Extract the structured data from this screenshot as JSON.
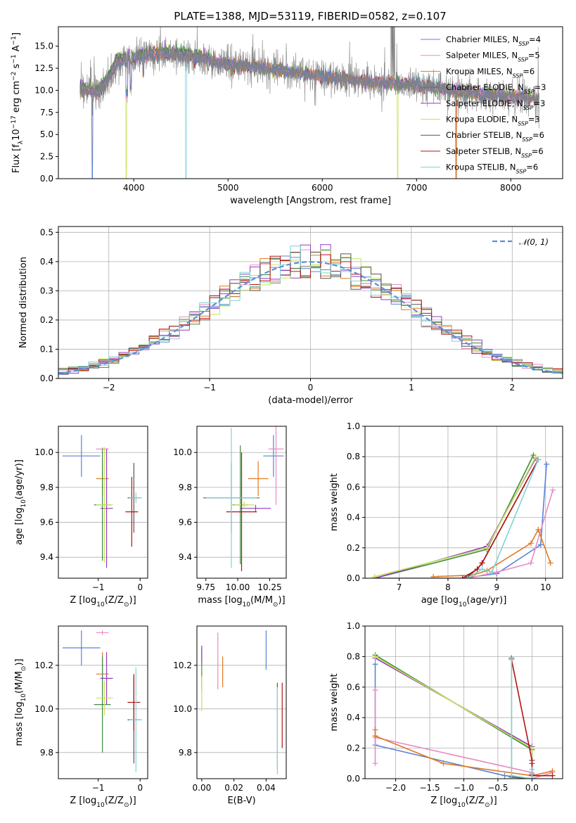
{
  "title": "PLATE=1388, MJD=53119, FIBERID=0582, z=0.107",
  "colors": {
    "Chabrier MILES": "#5b83d6",
    "Salpeter MILES": "#e98bc6",
    "Kroupa MILES": "#e07a20",
    "Chabrier ELODIE": "#3f8c3f",
    "Salpeter ELODIE": "#9a39c4",
    "Kroupa ELODIE": "#c5e35a",
    "Chabrier STELIB": "#555555",
    "Salpeter STELIB": "#b31414",
    "Kroupa STELIB": "#7fd3d8"
  },
  "legend": [
    {
      "key": "Chabrier MILES",
      "prefix": "Chabrier MILES, N",
      "sub": "SSP",
      "suffix": "=4"
    },
    {
      "key": "Salpeter MILES",
      "prefix": "Salpeter MILES, N",
      "sub": "SSP",
      "suffix": "=5"
    },
    {
      "key": "Kroupa MILES",
      "prefix": "Kroupa MILES, N",
      "sub": "SSP",
      "suffix": "=6"
    },
    {
      "key": "Chabrier ELODIE",
      "prefix": "Chabrier ELODIE, N",
      "sub": "SSP",
      "suffix": "=3"
    },
    {
      "key": "Salpeter ELODIE",
      "prefix": "Salpeter ELODIE, N",
      "sub": "SSP",
      "suffix": "=3"
    },
    {
      "key": "Kroupa ELODIE",
      "prefix": "Kroupa ELODIE, N",
      "sub": "SSP",
      "suffix": "=3"
    },
    {
      "key": "Chabrier STELIB",
      "prefix": "Chabrier STELIB, N",
      "sub": "SSP",
      "suffix": "=6"
    },
    {
      "key": "Salpeter STELIB",
      "prefix": "Salpeter STELIB, N",
      "sub": "SSP",
      "suffix": "=6"
    },
    {
      "key": "Kroupa STELIB",
      "prefix": "Kroupa STELIB, N",
      "sub": "SSP",
      "suffix": "=6"
    }
  ],
  "chart_data": [
    {
      "id": "spectrum",
      "type": "line",
      "title": "PLATE=1388, MJD=53119, FIBERID=0582, z=0.107",
      "xlabel": "wavelength [Angstrom, rest frame]",
      "ylabel": {
        "pre": "Flux [f",
        "sub": "λ",
        "mid": "10",
        "sup": "−17",
        "post": " erg cm",
        "sup2": "−2",
        "post2": " s",
        "sup3": "−1",
        "post3": " A",
        "sup4": "−1",
        "post4": "]"
      },
      "xlim": [
        3200,
        8550
      ],
      "ylim": [
        0,
        17.2
      ],
      "xticks": [
        4000,
        5000,
        6000,
        7000,
        8000
      ],
      "yticks": [
        0.0,
        2.5,
        5.0,
        7.5,
        10.0,
        12.5,
        15.0
      ],
      "ytick_labels": [
        "0.0",
        "2.5",
        "5.0",
        "7.5",
        "10.0",
        "12.5",
        "15.0"
      ],
      "continuum": [
        [
          3430,
          10.1
        ],
        [
          3600,
          9.6
        ],
        [
          3700,
          10.6
        ],
        [
          3800,
          12.8
        ],
        [
          3900,
          13.4
        ],
        [
          4000,
          13.6
        ],
        [
          4200,
          14.0
        ],
        [
          4500,
          13.9
        ],
        [
          4800,
          13.4
        ],
        [
          5000,
          12.9
        ],
        [
          5500,
          12.4
        ],
        [
          6000,
          11.6
        ],
        [
          6500,
          11.0
        ],
        [
          7000,
          10.6
        ],
        [
          7500,
          9.8
        ],
        [
          8000,
          9.3
        ],
        [
          8300,
          9.0
        ]
      ],
      "data_x_range": [
        3430,
        8300
      ]
    },
    {
      "id": "residuals",
      "type": "line",
      "xlabel": "(data-model)/error",
      "ylabel": "Normed distribution",
      "xlim": [
        -2.5,
        2.5
      ],
      "ylim": [
        0,
        0.52
      ],
      "xticks": [
        -2,
        -1,
        0,
        1,
        2
      ],
      "xtick_labels": [
        "−2",
        "−1",
        "0",
        "1",
        "2"
      ],
      "yticks": [
        0.0,
        0.1,
        0.2,
        0.3,
        0.4,
        0.5
      ],
      "ytick_labels": [
        "0.0",
        "0.1",
        "0.2",
        "0.3",
        "0.4",
        "0.5"
      ],
      "grid": true,
      "bin_width": 0.1,
      "gaussian_legend": "𝒩(0, 1)",
      "gaussian_color": "#5b8fd6"
    },
    {
      "id": "age-vs-Z",
      "type": "scatter",
      "xlabel": {
        "pre": "Z [log",
        "sub": "10",
        "post": "(Z/Z",
        "sub2": "⊙",
        "post2": ")]"
      },
      "ylabel": {
        "pre": "age  [log",
        "sub": "10",
        "post": "(age/yr)]"
      },
      "xlim": [
        -1.95,
        0.18
      ],
      "ylim": [
        9.28,
        10.15
      ],
      "xticks": [
        -1,
        0
      ],
      "xtick_labels": [
        "−1",
        "0"
      ],
      "yticks": [
        9.4,
        9.6,
        9.8,
        10.0
      ],
      "ytick_labels": [
        "9.4",
        "9.6",
        "9.8",
        "10.0"
      ],
      "points": [
        {
          "key": "Chabrier MILES",
          "x": -1.4,
          "xerr": 0.45,
          "y": 9.98,
          "yerr": 0.12
        },
        {
          "key": "Salpeter MILES",
          "x": -0.9,
          "xerr": 0.15,
          "y": 10.02,
          "yerr": 0.01
        },
        {
          "key": "Kroupa MILES",
          "x": -0.9,
          "xerr": 0.15,
          "y": 9.85,
          "yerr": 0.1
        },
        {
          "key": "Chabrier ELODIE",
          "x": -0.9,
          "xerr": 0.2,
          "y": 9.7,
          "yerr": 0.32
        },
        {
          "key": "Salpeter ELODIE",
          "x": -0.8,
          "xerr": 0.15,
          "y": 9.68,
          "yerr": 0.34
        },
        {
          "key": "Kroupa ELODIE",
          "x": -0.85,
          "xerr": 0.2,
          "y": 9.7,
          "yerr": 0.33
        },
        {
          "key": "Chabrier STELIB",
          "x": -0.15,
          "xerr": 0.15,
          "y": 9.74,
          "yerr": 0.2
        },
        {
          "key": "Salpeter STELIB",
          "x": -0.2,
          "xerr": 0.15,
          "y": 9.66,
          "yerr": 0.2
        },
        {
          "key": "Kroupa STELIB",
          "x": -0.1,
          "xerr": 0.15,
          "y": 9.74,
          "yerr": 0.03
        }
      ]
    },
    {
      "id": "age-vs-mass",
      "type": "scatter",
      "xlabel": {
        "pre": "mass [log",
        "sub": "10",
        "post": "(M/M",
        "sub2": "⊙",
        "post2": ")]"
      },
      "xlim": [
        9.68,
        10.38
      ],
      "ylim": [
        9.28,
        10.15
      ],
      "xticks": [
        9.75,
        10.0,
        10.25
      ],
      "xtick_labels": [
        "9.75",
        "10.00",
        "10.25"
      ],
      "yticks": [
        9.4,
        9.6,
        9.8,
        10.0
      ],
      "ytick_labels": [
        "9.4",
        "9.6",
        "9.8",
        "10.0"
      ],
      "points": [
        {
          "key": "Chabrier MILES",
          "x": 10.28,
          "xerr": 0.08,
          "y": 9.98,
          "yerr": 0.12
        },
        {
          "key": "Salpeter MILES",
          "x": 10.3,
          "xerr": 0.06,
          "y": 10.02,
          "yerr": 0.32
        },
        {
          "key": "Kroupa MILES",
          "x": 10.16,
          "xerr": 0.08,
          "y": 9.85,
          "yerr": 0.1
        },
        {
          "key": "Chabrier ELODIE",
          "x": 10.02,
          "xerr": 0.06,
          "y": 9.7,
          "yerr": 0.34
        },
        {
          "key": "Salpeter ELODIE",
          "x": 10.14,
          "xerr": 0.12,
          "y": 9.68,
          "yerr": 0.02
        },
        {
          "key": "Kroupa ELODIE",
          "x": 10.05,
          "xerr": 0.08,
          "y": 9.7,
          "yerr": 0.02
        },
        {
          "key": "Chabrier STELIB",
          "x": 9.95,
          "xerr": 0.22,
          "y": 9.74,
          "yerr": 0.2
        },
        {
          "key": "Salpeter STELIB",
          "x": 10.03,
          "xerr": 0.12,
          "y": 9.66,
          "yerr": 0.34
        },
        {
          "key": "Kroupa STELIB",
          "x": 9.95,
          "xerr": 0.2,
          "y": 9.74,
          "yerr": 0.4
        }
      ]
    },
    {
      "id": "massweight-vs-age",
      "type": "line",
      "xlabel": {
        "pre": "age  [log",
        "sub": "10",
        "post": "(age/yr)]"
      },
      "ylabel": "mass weight",
      "xlim": [
        6.3,
        10.35
      ],
      "ylim": [
        0,
        1.0
      ],
      "xticks": [
        7,
        8,
        9,
        10
      ],
      "xtick_labels": [
        "7",
        "8",
        "9",
        "10"
      ],
      "yticks": [
        0.0,
        0.2,
        0.4,
        0.6,
        0.8,
        1.0
      ],
      "ytick_labels": [
        "0.0",
        "0.2",
        "0.4",
        "0.6",
        "0.8",
        "1.0"
      ],
      "grid": true,
      "series": [
        {
          "key": "Chabrier MILES",
          "x": [
            6.5,
            8.3,
            9.0,
            9.9,
            10.02
          ],
          "y": [
            0.0,
            0.0,
            0.03,
            0.22,
            0.75
          ]
        },
        {
          "key": "Salpeter MILES",
          "x": [
            7.8,
            8.4,
            9.0,
            9.7,
            10.15
          ],
          "y": [
            0.0,
            0.0,
            0.04,
            0.1,
            0.58
          ]
        },
        {
          "key": "Kroupa MILES",
          "x": [
            7.7,
            8.5,
            8.8,
            9.7,
            9.85,
            10.1
          ],
          "y": [
            0.01,
            0.02,
            0.05,
            0.23,
            0.32,
            0.1
          ]
        },
        {
          "key": "Chabrier ELODIE",
          "x": [
            6.5,
            8.8,
            9.75
          ],
          "y": [
            0.0,
            0.19,
            0.81
          ]
        },
        {
          "key": "Salpeter ELODIE",
          "x": [
            6.5,
            8.8,
            9.8
          ],
          "y": [
            0.0,
            0.21,
            0.79
          ]
        },
        {
          "key": "Kroupa ELODIE",
          "x": [
            6.5,
            8.8,
            9.8
          ],
          "y": [
            0.01,
            0.2,
            0.8
          ]
        },
        {
          "key": "Chabrier STELIB",
          "x": [
            8.4,
            8.6,
            8.7,
            9.85
          ],
          "y": [
            0.01,
            0.06,
            0.1,
            0.78
          ]
        },
        {
          "key": "Salpeter STELIB",
          "x": [
            8.3,
            8.6,
            8.7,
            9.85
          ],
          "y": [
            0.0,
            0.06,
            0.1,
            0.78
          ]
        },
        {
          "key": "Kroupa STELIB",
          "x": [
            8.4,
            8.7,
            8.9,
            9.85
          ],
          "y": [
            0.0,
            0.06,
            0.04,
            0.78
          ]
        }
      ]
    },
    {
      "id": "mass-vs-Z",
      "type": "scatter",
      "xlabel": {
        "pre": "Z [log",
        "sub": "10",
        "post": "(Z/Z",
        "sub2": "⊙",
        "post2": ")]"
      },
      "ylabel": {
        "pre": "mass [log",
        "sub": "10",
        "post": "(M/M",
        "sub2": "⊙",
        "post2": ")]"
      },
      "xlim": [
        -1.95,
        0.18
      ],
      "ylim": [
        9.68,
        10.38
      ],
      "xticks": [
        -1,
        0
      ],
      "xtick_labels": [
        "−1",
        "0"
      ],
      "yticks": [
        9.8,
        10.0,
        10.2
      ],
      "ytick_labels": [
        "9.8",
        "10.0",
        "10.2"
      ],
      "points": [
        {
          "key": "Chabrier MILES",
          "x": -1.4,
          "xerr": 0.45,
          "y": 10.28,
          "yerr": 0.08
        },
        {
          "key": "Salpeter MILES",
          "x": -0.9,
          "xerr": 0.15,
          "y": 10.35,
          "yerr": 0.01
        },
        {
          "key": "Kroupa MILES",
          "x": -0.9,
          "xerr": 0.15,
          "y": 10.16,
          "yerr": 0.1
        },
        {
          "key": "Chabrier ELODIE",
          "x": -0.9,
          "xerr": 0.2,
          "y": 10.02,
          "yerr": 0.22
        },
        {
          "key": "Salpeter ELODIE",
          "x": -0.8,
          "xerr": 0.15,
          "y": 10.14,
          "yerr": 0.12
        },
        {
          "key": "Kroupa ELODIE",
          "x": -0.85,
          "xerr": 0.2,
          "y": 10.05,
          "yerr": 0.08
        },
        {
          "key": "Chabrier STELIB",
          "x": -0.15,
          "xerr": 0.15,
          "y": 9.95,
          "yerr": 0.2
        },
        {
          "key": "Salpeter STELIB",
          "x": -0.15,
          "xerr": 0.15,
          "y": 10.03,
          "yerr": 0.13
        },
        {
          "key": "Kroupa STELIB",
          "x": -0.1,
          "xerr": 0.15,
          "y": 9.95,
          "yerr": 0.24
        }
      ]
    },
    {
      "id": "mass-vs-EBV",
      "type": "scatter",
      "xlabel": "E(B-V)",
      "xlim": [
        -0.003,
        0.0525
      ],
      "ylim": [
        9.68,
        10.38
      ],
      "xticks": [
        0.0,
        0.02,
        0.04
      ],
      "xtick_labels": [
        "0.00",
        "0.02",
        "0.04"
      ],
      "yticks": [
        9.8,
        10.0,
        10.2
      ],
      "ytick_labels": [
        "9.8",
        "10.0",
        "10.2"
      ],
      "points": [
        {
          "key": "Chabrier MILES",
          "x": 0.04,
          "y": 10.27,
          "yerr": 0.09
        },
        {
          "key": "Salpeter MILES",
          "x": 0.01,
          "y": 10.22,
          "yerr": 0.13
        },
        {
          "key": "Kroupa MILES",
          "x": 0.013,
          "y": 10.17,
          "yerr": 0.07
        },
        {
          "key": "Chabrier ELODIE",
          "x": 0.0,
          "y": 10.18,
          "yerr": 0.1
        },
        {
          "key": "Salpeter ELODIE",
          "x": 0.0,
          "y": 10.25,
          "yerr": 0.04
        },
        {
          "key": "Kroupa ELODIE",
          "x": 0.0,
          "y": 10.07,
          "yerr": 0.08
        },
        {
          "key": "Chabrier STELIB",
          "x": 0.047,
          "y": 9.92,
          "yerr": 0.2
        },
        {
          "key": "Salpeter STELIB",
          "x": 0.05,
          "y": 9.97,
          "yerr": 0.15
        },
        {
          "key": "Kroupa STELIB",
          "x": 0.047,
          "y": 9.9,
          "yerr": 0.2
        }
      ]
    },
    {
      "id": "massweight-vs-Z",
      "type": "line",
      "xlabel": {
        "pre": "Z [log",
        "sub": "10",
        "post": "(Z/Z",
        "sub2": "⊙",
        "post2": ")]"
      },
      "ylabel": "mass weight",
      "xlim": [
        -2.45,
        0.45
      ],
      "ylim": [
        0,
        1.0
      ],
      "xticks": [
        -2.0,
        -1.5,
        -1.0,
        -0.5,
        0.0
      ],
      "xtick_labels": [
        "−2.0",
        "−1.5",
        "−1.0",
        "−0.5",
        "0.0"
      ],
      "yticks": [
        0.0,
        0.2,
        0.4,
        0.6,
        0.8,
        1.0
      ],
      "ytick_labels": [
        "0.0",
        "0.2",
        "0.4",
        "0.6",
        "0.8",
        "1.0"
      ],
      "grid": true,
      "series": [
        {
          "key": "Chabrier MILES",
          "x": [
            -2.3,
            -2.3,
            -0.4,
            0.0,
            0.0
          ],
          "y": [
            0.75,
            0.22,
            0.02,
            0.0,
            0.03
          ]
        },
        {
          "key": "Salpeter MILES",
          "x": [
            -2.3,
            -2.3,
            -2.3,
            0.0,
            0.0,
            0.3
          ],
          "y": [
            0.58,
            0.1,
            0.27,
            0.04,
            0.0,
            0.04
          ]
        },
        {
          "key": "Kroupa MILES",
          "x": [
            -2.3,
            -2.3,
            -1.3,
            0.0,
            0.3
          ],
          "y": [
            0.32,
            0.28,
            0.1,
            0.02,
            0.05
          ]
        },
        {
          "key": "Chabrier ELODIE",
          "x": [
            -2.3,
            0.0,
            0.0
          ],
          "y": [
            0.81,
            0.19,
            0.0
          ]
        },
        {
          "key": "Salpeter ELODIE",
          "x": [
            -2.3,
            0.0,
            0.0
          ],
          "y": [
            0.79,
            0.21,
            0.0
          ]
        },
        {
          "key": "Kroupa ELODIE",
          "x": [
            -2.3,
            0.0,
            0.0
          ],
          "y": [
            0.8,
            0.2,
            0.0
          ]
        },
        {
          "key": "Chabrier STELIB",
          "x": [
            -0.3,
            -0.3,
            0.0,
            0.0
          ],
          "y": [
            0.79,
            0.01,
            0.0,
            0.1
          ]
        },
        {
          "key": "Salpeter STELIB",
          "x": [
            -0.3,
            0.0,
            0.0,
            0.3
          ],
          "y": [
            0.78,
            0.12,
            0.02,
            0.02
          ]
        },
        {
          "key": "Kroupa STELIB",
          "x": [
            -0.3,
            -0.3,
            0.0,
            0.0
          ],
          "y": [
            0.78,
            0.02,
            0.0,
            0.06
          ]
        }
      ]
    }
  ]
}
